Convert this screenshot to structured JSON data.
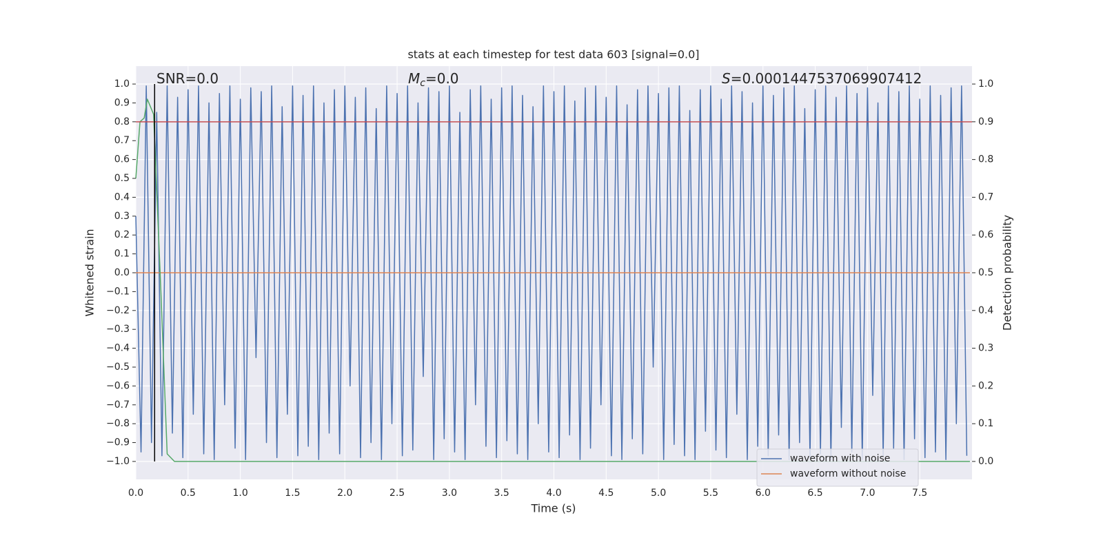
{
  "chart_data": {
    "type": "line",
    "title": "stats at each timestep for test data 603 [signal=0.0]",
    "x_label": "Time (s)",
    "y_label": "Whitened strain",
    "y2_label": "Detection probability",
    "annotations": {
      "snr": "SNR=0.0",
      "mc": [
        "M",
        "c",
        "=0.0"
      ],
      "s": [
        "S",
        "=0.0001447537069907412"
      ]
    },
    "xlim": [
      0,
      8.0
    ],
    "ylim": [
      -1.095,
      1.095
    ],
    "y2lim": [
      -0.0475,
      1.0475
    ],
    "xticks": [
      {
        "value": 0,
        "label": "0.0"
      },
      0.5,
      {
        "value": 1,
        "label": "1.0"
      },
      1.5,
      {
        "value": 2,
        "label": "2.0"
      },
      2.5,
      {
        "value": 3,
        "label": "3.0"
      },
      3.5,
      {
        "value": 4,
        "label": "4.0"
      },
      4.5,
      {
        "value": 5,
        "label": "5.0"
      },
      5.5,
      {
        "value": 6,
        "label": "6.0"
      },
      6.5,
      {
        "value": 7,
        "label": "7.0"
      },
      7.5
    ],
    "yticks": [
      {
        "value": 1,
        "label": "1.0"
      },
      0.9,
      0.8,
      0.7,
      0.6,
      0.5,
      0.4,
      0.3,
      0.2,
      0.1,
      {
        "value": 0,
        "label": "0.0"
      },
      {
        "value": -0.1,
        "label": "−0.1"
      },
      {
        "value": -0.2,
        "label": "−0.2"
      },
      {
        "value": -0.3,
        "label": "−0.3"
      },
      {
        "value": -0.4,
        "label": "−0.4"
      },
      {
        "value": -0.5,
        "label": "−0.5"
      },
      {
        "value": -0.6,
        "label": "−0.6"
      },
      {
        "value": -0.7,
        "label": "−0.7"
      },
      {
        "value": -0.8,
        "label": "−0.8"
      },
      {
        "value": -0.9,
        "label": "−0.9"
      },
      {
        "value": -1,
        "label": "−1.0"
      }
    ],
    "y2ticks": [
      {
        "value": 1,
        "label": "1.0"
      },
      0.9,
      0.8,
      0.7,
      0.6,
      0.5,
      0.4,
      0.3,
      0.2,
      0.1,
      {
        "value": 0,
        "label": "0.0"
      }
    ],
    "grid": true,
    "legend": "lower right",
    "series": [
      {
        "name": "waveform with noise",
        "color": "#4c72b0",
        "x": [
          0,
          0.05,
          0.1,
          0.15,
          0.2,
          0.25,
          0.3,
          0.35,
          0.4,
          0.45,
          0.5,
          0.55,
          0.6,
          0.65,
          0.7,
          0.75,
          0.8,
          0.85,
          0.9,
          0.95,
          1,
          1.05,
          1.1,
          1.15,
          1.2,
          1.25,
          1.3,
          1.35,
          1.4,
          1.45,
          1.5,
          1.55,
          1.6,
          1.65,
          1.7,
          1.75,
          1.8,
          1.85,
          1.9,
          1.95,
          2,
          2.05,
          2.1,
          2.15,
          2.2,
          2.25,
          2.3,
          2.35,
          2.4,
          2.45,
          2.5,
          2.55,
          2.6,
          2.65,
          2.7,
          2.75,
          2.8,
          2.85,
          2.9,
          2.95,
          3,
          3.05,
          3.1,
          3.15,
          3.2,
          3.25,
          3.3,
          3.35,
          3.4,
          3.45,
          3.5,
          3.55,
          3.6,
          3.65,
          3.7,
          3.75,
          3.8,
          3.85,
          3.9,
          3.95,
          4,
          4.05,
          4.1,
          4.15,
          4.2,
          4.25,
          4.3,
          4.35,
          4.4,
          4.45,
          4.5,
          4.55,
          4.6,
          4.65,
          4.7,
          4.75,
          4.8,
          4.85,
          4.9,
          4.95,
          5,
          5.05,
          5.1,
          5.15,
          5.2,
          5.25,
          5.3,
          5.35,
          5.4,
          5.45,
          5.5,
          5.55,
          5.6,
          5.65,
          5.7,
          5.75,
          5.8,
          5.85,
          5.9,
          5.95,
          6,
          6.05,
          6.1,
          6.15,
          6.2,
          6.25,
          6.3,
          6.35,
          6.4,
          6.45,
          6.5,
          6.55,
          6.6,
          6.65,
          6.7,
          6.75,
          6.8,
          6.85,
          6.9,
          6.95,
          7,
          7.05,
          7.1,
          7.15,
          7.2,
          7.25,
          7.3,
          7.35,
          7.4,
          7.45,
          7.5,
          7.55,
          7.6,
          7.65,
          7.7,
          7.75,
          7.8,
          7.85,
          7.9,
          7.95
        ],
        "values": [
          0.3,
          -0.95,
          0.99,
          -0.9,
          0.85,
          -0.97,
          0.99,
          -0.85,
          0.93,
          -0.98,
          0.97,
          -0.75,
          0.99,
          -0.96,
          0.9,
          -0.99,
          0.95,
          -0.7,
          0.99,
          -0.93,
          0.92,
          -0.99,
          0.98,
          -0.45,
          0.96,
          -0.9,
          0.99,
          -0.98,
          0.88,
          -0.75,
          0.99,
          -0.97,
          0.94,
          -0.92,
          0.99,
          -0.99,
          0.9,
          -0.85,
          0.97,
          -0.96,
          0.99,
          -0.6,
          0.93,
          -0.98,
          0.98,
          -0.9,
          0.87,
          -0.99,
          0.99,
          -0.8,
          0.95,
          -0.97,
          0.99,
          -0.94,
          0.9,
          -0.55,
          0.98,
          -0.99,
          0.96,
          -0.88,
          0.99,
          -0.95,
          0.85,
          -0.99,
          0.97,
          -0.7,
          0.99,
          -0.92,
          0.92,
          -0.98,
          0.98,
          -0.89,
          0.99,
          -0.96,
          0.94,
          -0.99,
          0.88,
          -0.8,
          0.99,
          -0.95,
          0.96,
          -0.98,
          0.99,
          -0.86,
          0.91,
          -0.99,
          0.98,
          -0.93,
          0.99,
          -0.7,
          0.93,
          -0.97,
          0.99,
          -0.99,
          0.89,
          -0.88,
          0.97,
          -0.96,
          0.99,
          -0.5,
          0.95,
          -0.99,
          0.98,
          -0.91,
          0.99,
          -0.97,
          0.86,
          -0.99,
          0.97,
          -0.84,
          0.99,
          -0.94,
          0.92,
          -0.98,
          0.99,
          -0.75,
          0.96,
          -0.99,
          0.9,
          -0.92,
          0.99,
          -0.97,
          0.94,
          -0.86,
          0.98,
          -0.99,
          0.99,
          -0.9,
          0.87,
          -0.98,
          0.97,
          -0.96,
          0.99,
          -0.99,
          0.93,
          -0.82,
          0.99,
          -0.95,
          0.95,
          -0.99,
          0.98,
          -0.65,
          0.9,
          -0.97,
          0.99,
          -0.93,
          0.96,
          -0.99,
          0.99,
          -0.88,
          0.92,
          -0.98,
          0.99,
          -0.95,
          0.94,
          -0.99,
          0.98,
          -0.8,
          0.99,
          -0.97
        ]
      },
      {
        "name": "waveform without noise",
        "color": "#dd8452",
        "x": [
          0,
          7.98
        ],
        "values": [
          0,
          0
        ]
      },
      {
        "color": "#55a868",
        "axis": "y2",
        "x": [
          0,
          0.04,
          0.08,
          0.11,
          0.17,
          0.24,
          0.3,
          0.37,
          7.98
        ],
        "values": [
          0.75,
          0.9,
          0.91,
          0.96,
          0.92,
          0.45,
          0.02,
          0,
          0
        ]
      }
    ],
    "threshold": {
      "value": 0.9,
      "axis": "y2",
      "color": "#c44e52"
    },
    "vline": {
      "x": 0.18,
      "color": "#000000",
      "y2range": [
        0,
        1
      ]
    }
  }
}
